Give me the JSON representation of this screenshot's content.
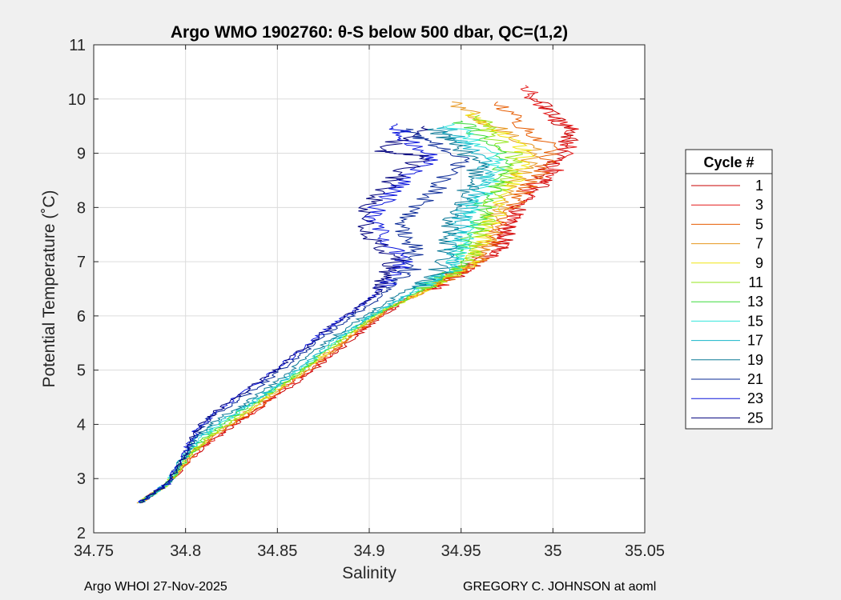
{
  "chart_data": {
    "type": "line",
    "title": "Argo WMO 1902760: θ-S below 500 dbar,  QC=(1,2)",
    "xlabel": "Salinity",
    "ylabel": "Potential Temperature (˚C)",
    "xlim": [
      34.75,
      35.05
    ],
    "ylim": [
      2,
      11
    ],
    "x_ticks": [
      34.75,
      34.8,
      34.85,
      34.9,
      34.95,
      35,
      35.05
    ],
    "x_tick_labels": [
      "34.75",
      "34.8",
      "34.85",
      "34.9",
      "34.95",
      "35",
      "35.05"
    ],
    "y_ticks": [
      2,
      3,
      4,
      5,
      6,
      7,
      8,
      9,
      10,
      11
    ],
    "y_tick_labels": [
      "2",
      "3",
      "4",
      "5",
      "6",
      "7",
      "8",
      "9",
      "10",
      "11"
    ],
    "grid": true,
    "legend": {
      "title": "Cycle #",
      "location": "right",
      "entries": [
        "1",
        "3",
        "5",
        "7",
        "9",
        "11",
        "13",
        "15",
        "17",
        "19",
        "21",
        "23",
        "25"
      ],
      "colors": [
        "#c80000",
        "#e41a1a",
        "#e65c00",
        "#e6961e",
        "#f0e614",
        "#96e61e",
        "#3cdc3c",
        "#32e6dc",
        "#14b4c8",
        "#0a7896",
        "#082896",
        "#0a14dc",
        "#00007d"
      ]
    },
    "series": [
      {
        "name": "1",
        "color": "#c80000",
        "points": [
          [
            34.775,
            2.55
          ],
          [
            34.79,
            2.9
          ],
          [
            34.81,
            3.6
          ],
          [
            34.825,
            3.95
          ],
          [
            34.84,
            4.3
          ],
          [
            34.86,
            4.75
          ],
          [
            34.875,
            5.15
          ],
          [
            34.89,
            5.55
          ],
          [
            34.905,
            5.95
          ],
          [
            34.92,
            6.3
          ],
          [
            34.94,
            6.6
          ],
          [
            34.955,
            6.9
          ],
          [
            34.97,
            7.2
          ],
          [
            34.975,
            7.6
          ],
          [
            34.985,
            8.1
          ],
          [
            34.995,
            8.5
          ],
          [
            35.0,
            8.9
          ],
          [
            35.01,
            9.3
          ],
          [
            35.0,
            9.7
          ],
          [
            34.99,
            10.1
          ]
        ]
      },
      {
        "name": "3",
        "color": "#e41a1a",
        "points": [
          [
            34.775,
            2.55
          ],
          [
            34.79,
            2.9
          ],
          [
            34.808,
            3.55
          ],
          [
            34.822,
            3.9
          ],
          [
            34.838,
            4.25
          ],
          [
            34.855,
            4.7
          ],
          [
            34.872,
            5.1
          ],
          [
            34.887,
            5.5
          ],
          [
            34.902,
            5.9
          ],
          [
            34.917,
            6.25
          ],
          [
            34.937,
            6.55
          ],
          [
            34.952,
            6.85
          ],
          [
            34.967,
            7.15
          ],
          [
            34.975,
            7.55
          ],
          [
            34.98,
            8.0
          ],
          [
            34.99,
            8.4
          ],
          [
            35.005,
            8.8
          ],
          [
            35.012,
            9.35
          ],
          [
            34.995,
            9.8
          ],
          [
            34.985,
            10.25
          ]
        ]
      },
      {
        "name": "5",
        "color": "#e65c00",
        "points": [
          [
            34.775,
            2.55
          ],
          [
            34.79,
            2.9
          ],
          [
            34.806,
            3.55
          ],
          [
            34.82,
            3.9
          ],
          [
            34.835,
            4.2
          ],
          [
            34.852,
            4.65
          ],
          [
            34.869,
            5.05
          ],
          [
            34.884,
            5.45
          ],
          [
            34.899,
            5.85
          ],
          [
            34.914,
            6.2
          ],
          [
            34.933,
            6.5
          ],
          [
            34.948,
            6.8
          ],
          [
            34.963,
            7.1
          ],
          [
            34.97,
            7.5
          ],
          [
            34.975,
            7.9
          ],
          [
            34.985,
            8.3
          ],
          [
            34.995,
            8.7
          ],
          [
            35.0,
            9.1
          ],
          [
            34.985,
            9.5
          ],
          [
            34.97,
            9.95
          ]
        ]
      },
      {
        "name": "7",
        "color": "#e6961e",
        "points": [
          [
            34.775,
            2.55
          ],
          [
            34.79,
            2.9
          ],
          [
            34.805,
            3.5
          ],
          [
            34.818,
            3.85
          ],
          [
            34.832,
            4.2
          ],
          [
            34.849,
            4.6
          ],
          [
            34.866,
            5.0
          ],
          [
            34.881,
            5.4
          ],
          [
            34.896,
            5.8
          ],
          [
            34.911,
            6.15
          ],
          [
            34.93,
            6.45
          ],
          [
            34.945,
            6.75
          ],
          [
            34.96,
            7.05
          ],
          [
            34.965,
            7.45
          ],
          [
            34.97,
            7.9
          ],
          [
            34.975,
            8.3
          ],
          [
            34.985,
            8.7
          ],
          [
            34.99,
            9.1
          ],
          [
            34.965,
            9.55
          ],
          [
            34.945,
            9.95
          ]
        ]
      },
      {
        "name": "9",
        "color": "#f0e614",
        "points": [
          [
            34.775,
            2.55
          ],
          [
            34.79,
            2.9
          ],
          [
            34.804,
            3.5
          ],
          [
            34.816,
            3.85
          ],
          [
            34.83,
            4.15
          ],
          [
            34.846,
            4.55
          ],
          [
            34.863,
            4.95
          ],
          [
            34.878,
            5.35
          ],
          [
            34.893,
            5.75
          ],
          [
            34.908,
            6.1
          ],
          [
            34.927,
            6.4
          ],
          [
            34.942,
            6.7
          ],
          [
            34.957,
            7.0
          ],
          [
            34.962,
            7.4
          ],
          [
            34.968,
            7.8
          ],
          [
            34.975,
            8.2
          ],
          [
            34.98,
            8.6
          ],
          [
            34.985,
            9.0
          ],
          [
            34.97,
            9.4
          ],
          [
            34.955,
            9.75
          ]
        ]
      },
      {
        "name": "11",
        "color": "#96e61e",
        "points": [
          [
            34.775,
            2.55
          ],
          [
            34.79,
            2.9
          ],
          [
            34.803,
            3.45
          ],
          [
            34.814,
            3.8
          ],
          [
            34.827,
            4.1
          ],
          [
            34.843,
            4.5
          ],
          [
            34.86,
            4.9
          ],
          [
            34.875,
            5.3
          ],
          [
            34.89,
            5.7
          ],
          [
            34.905,
            6.05
          ],
          [
            34.923,
            6.35
          ],
          [
            34.938,
            6.65
          ],
          [
            34.953,
            6.95
          ],
          [
            34.958,
            7.35
          ],
          [
            34.963,
            7.75
          ],
          [
            34.968,
            8.15
          ],
          [
            34.975,
            8.55
          ],
          [
            34.98,
            8.95
          ],
          [
            34.965,
            9.35
          ],
          [
            34.96,
            9.7
          ]
        ]
      },
      {
        "name": "13",
        "color": "#3cdc3c",
        "points": [
          [
            34.775,
            2.55
          ],
          [
            34.79,
            2.9
          ],
          [
            34.802,
            3.45
          ],
          [
            34.812,
            3.8
          ],
          [
            34.824,
            4.1
          ],
          [
            34.84,
            4.45
          ],
          [
            34.857,
            4.85
          ],
          [
            34.872,
            5.25
          ],
          [
            34.887,
            5.65
          ],
          [
            34.902,
            6.0
          ],
          [
            34.919,
            6.3
          ],
          [
            34.934,
            6.6
          ],
          [
            34.949,
            6.9
          ],
          [
            34.954,
            7.3
          ],
          [
            34.958,
            7.7
          ],
          [
            34.963,
            8.1
          ],
          [
            34.97,
            8.5
          ],
          [
            34.975,
            8.9
          ],
          [
            34.96,
            9.3
          ],
          [
            34.95,
            9.6
          ]
        ]
      },
      {
        "name": "15",
        "color": "#32e6dc",
        "points": [
          [
            34.775,
            2.55
          ],
          [
            34.79,
            2.9
          ],
          [
            34.801,
            3.45
          ],
          [
            34.81,
            3.8
          ],
          [
            34.821,
            4.05
          ],
          [
            34.837,
            4.4
          ],
          [
            34.854,
            4.8
          ],
          [
            34.869,
            5.2
          ],
          [
            34.884,
            5.6
          ],
          [
            34.899,
            5.95
          ],
          [
            34.915,
            6.25
          ],
          [
            34.93,
            6.55
          ],
          [
            34.945,
            6.85
          ],
          [
            34.95,
            7.25
          ],
          [
            34.953,
            7.65
          ],
          [
            34.958,
            8.05
          ],
          [
            34.965,
            8.45
          ],
          [
            34.97,
            8.85
          ],
          [
            34.955,
            9.25
          ],
          [
            34.945,
            9.55
          ]
        ]
      },
      {
        "name": "17",
        "color": "#14b4c8",
        "points": [
          [
            34.775,
            2.55
          ],
          [
            34.79,
            2.9
          ],
          [
            34.8,
            3.45
          ],
          [
            34.808,
            3.8
          ],
          [
            34.818,
            4.05
          ],
          [
            34.834,
            4.35
          ],
          [
            34.851,
            4.75
          ],
          [
            34.866,
            5.15
          ],
          [
            34.881,
            5.55
          ],
          [
            34.896,
            5.9
          ],
          [
            34.911,
            6.2
          ],
          [
            34.926,
            6.5
          ],
          [
            34.941,
            6.8
          ],
          [
            34.946,
            7.2
          ],
          [
            34.948,
            7.6
          ],
          [
            34.953,
            8.0
          ],
          [
            34.96,
            8.4
          ],
          [
            34.965,
            8.8
          ],
          [
            34.95,
            9.2
          ],
          [
            34.94,
            9.5
          ]
        ]
      },
      {
        "name": "19",
        "color": "#0a7896",
        "points": [
          [
            34.775,
            2.55
          ],
          [
            34.79,
            2.9
          ],
          [
            34.8,
            3.45
          ],
          [
            34.806,
            3.8
          ],
          [
            34.815,
            4.05
          ],
          [
            34.831,
            4.35
          ],
          [
            34.848,
            4.75
          ],
          [
            34.863,
            5.15
          ],
          [
            34.878,
            5.55
          ],
          [
            34.893,
            5.9
          ],
          [
            34.907,
            6.2
          ],
          [
            34.922,
            6.5
          ],
          [
            34.937,
            6.8
          ],
          [
            34.942,
            7.2
          ],
          [
            34.943,
            7.6
          ],
          [
            34.948,
            8.0
          ],
          [
            34.955,
            8.4
          ],
          [
            34.96,
            8.8
          ],
          [
            34.945,
            9.2
          ],
          [
            34.935,
            9.45
          ]
        ]
      },
      {
        "name": "21",
        "color": "#082896",
        "points": [
          [
            34.775,
            2.55
          ],
          [
            34.79,
            2.9
          ],
          [
            34.8,
            3.45
          ],
          [
            34.806,
            3.85
          ],
          [
            34.814,
            4.15
          ],
          [
            34.829,
            4.45
          ],
          [
            34.846,
            4.85
          ],
          [
            34.861,
            5.25
          ],
          [
            34.876,
            5.65
          ],
          [
            34.891,
            6.0
          ],
          [
            34.904,
            6.3
          ],
          [
            34.914,
            6.6
          ],
          [
            34.924,
            6.9
          ],
          [
            34.924,
            7.3
          ],
          [
            34.918,
            7.7
          ],
          [
            34.93,
            8.1
          ],
          [
            34.94,
            8.5
          ],
          [
            34.95,
            8.9
          ],
          [
            34.93,
            9.25
          ],
          [
            34.92,
            9.45
          ]
        ]
      },
      {
        "name": "23",
        "color": "#0a14dc",
        "points": [
          [
            34.775,
            2.55
          ],
          [
            34.79,
            2.9
          ],
          [
            34.8,
            3.5
          ],
          [
            34.806,
            3.9
          ],
          [
            34.815,
            4.2
          ],
          [
            34.83,
            4.55
          ],
          [
            34.847,
            4.95
          ],
          [
            34.862,
            5.35
          ],
          [
            34.877,
            5.75
          ],
          [
            34.892,
            6.1
          ],
          [
            34.904,
            6.4
          ],
          [
            34.912,
            6.7
          ],
          [
            34.918,
            7.0
          ],
          [
            34.91,
            7.4
          ],
          [
            34.9,
            7.8
          ],
          [
            34.91,
            8.2
          ],
          [
            34.92,
            8.55
          ],
          [
            34.935,
            8.9
          ],
          [
            34.92,
            9.25
          ],
          [
            34.915,
            9.55
          ]
        ]
      },
      {
        "name": "25",
        "color": "#00007d",
        "points": [
          [
            34.775,
            2.55
          ],
          [
            34.79,
            2.9
          ],
          [
            34.8,
            3.5
          ],
          [
            34.807,
            3.95
          ],
          [
            34.817,
            4.25
          ],
          [
            34.832,
            4.6
          ],
          [
            34.849,
            5.0
          ],
          [
            34.864,
            5.4
          ],
          [
            34.879,
            5.8
          ],
          [
            34.894,
            6.15
          ],
          [
            34.905,
            6.45
          ],
          [
            34.91,
            6.75
          ],
          [
            34.914,
            7.05
          ],
          [
            34.9,
            7.45
          ],
          [
            34.895,
            7.85
          ],
          [
            34.905,
            8.25
          ],
          [
            34.915,
            8.6
          ],
          [
            34.93,
            8.95
          ],
          [
            34.905,
            9.05
          ],
          [
            34.93,
            9.5
          ]
        ]
      }
    ]
  },
  "footer": {
    "left": "Argo WHOI 27-Nov-2025",
    "right": "GREGORY C. JOHNSON at aoml"
  }
}
